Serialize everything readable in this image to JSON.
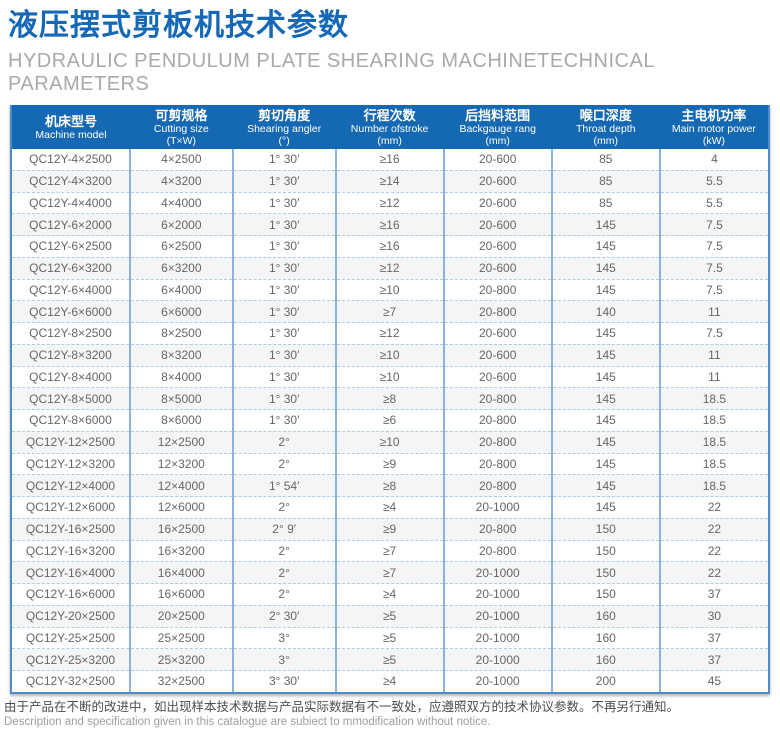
{
  "header": {
    "title_zh": "液压摆式剪板机技术参数",
    "subtitle_line1": "HYDRAULIC PENDULUM PLATE SHEARING MACHINETECHNICAL",
    "subtitle_line2": "PARAMETERS"
  },
  "table": {
    "columns": [
      {
        "zh": "机床型号",
        "en": "Machine model",
        "unit": ""
      },
      {
        "zh": "可剪规格",
        "en": "Cutting size",
        "unit": "(T×W)"
      },
      {
        "zh": "剪切角度",
        "en": "Shearing angler",
        "unit": "(°)"
      },
      {
        "zh": "行程次数",
        "en": "Number ofstroke",
        "unit": "(mm)"
      },
      {
        "zh": "后挡料范围",
        "en": "Backgauge rang",
        "unit": "(mm)"
      },
      {
        "zh": "喉口深度",
        "en": "Throat depth",
        "unit": "(mm)"
      },
      {
        "zh": "主电机功率",
        "en": "Main motor power",
        "unit": "(kW)"
      }
    ],
    "rows": [
      [
        "QC12Y-4×2500",
        "4×2500",
        "1° 30′",
        "≥16",
        "20-600",
        "85",
        "4"
      ],
      [
        "QC12Y-4×3200",
        "4×3200",
        "1° 30′",
        "≥14",
        "20-600",
        "85",
        "5.5"
      ],
      [
        "QC12Y-4×4000",
        "4×4000",
        "1° 30′",
        "≥12",
        "20-600",
        "85",
        "5.5"
      ],
      [
        "QC12Y-6×2000",
        "6×2000",
        "1° 30′",
        "≥16",
        "20-600",
        "145",
        "7.5"
      ],
      [
        "QC12Y-6×2500",
        "6×2500",
        "1° 30′",
        "≥16",
        "20-600",
        "145",
        "7.5"
      ],
      [
        "QC12Y-6×3200",
        "6×3200",
        "1° 30′",
        "≥12",
        "20-600",
        "145",
        "7.5"
      ],
      [
        "QC12Y-6×4000",
        "6×4000",
        "1° 30′",
        "≥10",
        "20-800",
        "145",
        "7.5"
      ],
      [
        "QC12Y-6×6000",
        "6×6000",
        "1° 30′",
        "≥7",
        "20-800",
        "140",
        "11"
      ],
      [
        "QC12Y-8×2500",
        "8×2500",
        "1° 30′",
        "≥12",
        "20-600",
        "145",
        "7.5"
      ],
      [
        "QC12Y-8×3200",
        "8×3200",
        "1° 30′",
        "≥10",
        "20-600",
        "145",
        "11"
      ],
      [
        "QC12Y-8×4000",
        "8×4000",
        "1° 30′",
        "≥10",
        "20-600",
        "145",
        "11"
      ],
      [
        "QC12Y-8×5000",
        "8×5000",
        "1° 30′",
        "≥8",
        "20-800",
        "145",
        "18.5"
      ],
      [
        "QC12Y-8×6000",
        "8×6000",
        "1° 30′",
        "≥6",
        "20-800",
        "145",
        "18.5"
      ],
      [
        "QC12Y-12×2500",
        "12×2500",
        "2°",
        "≥10",
        "20-800",
        "145",
        "18.5"
      ],
      [
        "QC12Y-12×3200",
        "12×3200",
        "2°",
        "≥9",
        "20-800",
        "145",
        "18.5"
      ],
      [
        "QC12Y-12×4000",
        "12×4000",
        "1° 54′",
        "≥8",
        "20-800",
        "145",
        "18.5"
      ],
      [
        "QC12Y-12×6000",
        "12×6000",
        "2°",
        "≥4",
        "20-1000",
        "145",
        "22"
      ],
      [
        "QC12Y-16×2500",
        "16×2500",
        "2° 9′",
        "≥9",
        "20-800",
        "150",
        "22"
      ],
      [
        "QC12Y-16×3200",
        "16×3200",
        "2°",
        "≥7",
        "20-800",
        "150",
        "22"
      ],
      [
        "QC12Y-16×4000",
        "16×4000",
        "2°",
        "≥7",
        "20-1000",
        "150",
        "22"
      ],
      [
        "QC12Y-16×6000",
        "16×6000",
        "2°",
        "≥4",
        "20-1000",
        "150",
        "37"
      ],
      [
        "QC12Y-20×2500",
        "20×2500",
        "2° 30′",
        "≥5",
        "20-1000",
        "160",
        "30"
      ],
      [
        "QC12Y-25×2500",
        "25×2500",
        "3°",
        "≥5",
        "20-1000",
        "160",
        "37"
      ],
      [
        "QC12Y-25×3200",
        "25×3200",
        "3°",
        "≥5",
        "20-1000",
        "160",
        "37"
      ],
      [
        "QC12Y-32×2500",
        "32×2500",
        "3° 30′",
        "≥4",
        "20-1000",
        "200",
        "45"
      ]
    ]
  },
  "footer": {
    "note_zh": "由于产品在不断的改进中，如出现样本技术数据与产品实际数据有不一致处，应遵照双方的技术协议参数。不再另行通知。",
    "note_en": "Description and specification given in this catalogue are subiect to mmodification without notice."
  },
  "colors": {
    "title_blue": "#1568b5",
    "header_bg": "#1568b2",
    "table_border": "#4e8cc8",
    "column_divider": "#8db3dc",
    "row_divider_dashed": "#aecbe8",
    "even_row_bg": "#f3f5f7",
    "cell_text": "#666666",
    "subtitle_gray": "#a9a9a9"
  }
}
